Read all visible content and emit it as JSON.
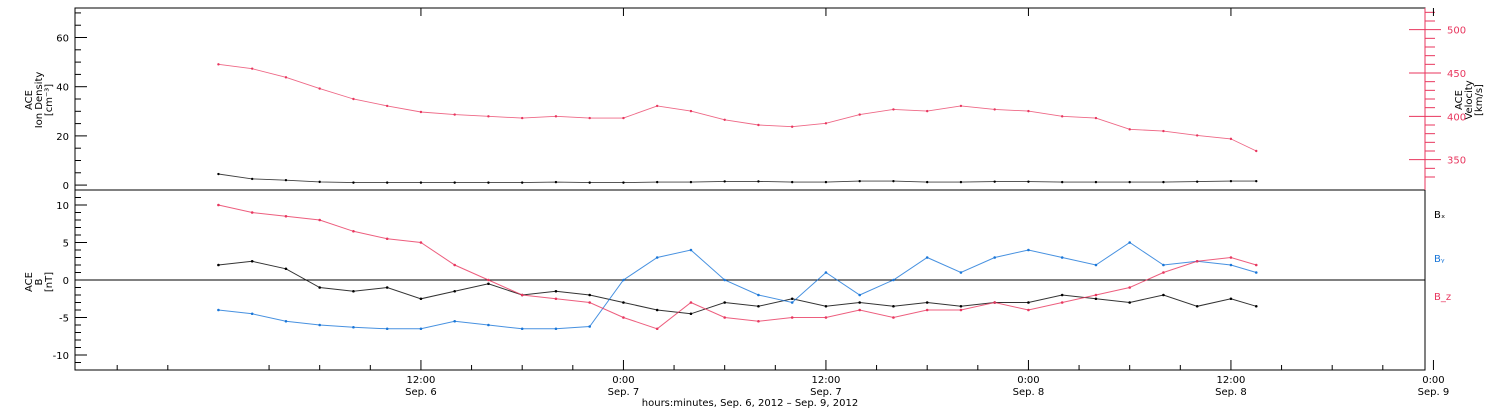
{
  "chart_data": [
    {
      "type": "scatter",
      "panel": "top",
      "ylabel_left": [
        "ACE",
        "Ion Density",
        "[cm⁻³]"
      ],
      "ylabel_right": [
        "ACE",
        "Velocity",
        "[km/s]"
      ],
      "ylim_left": [
        -2,
        72
      ],
      "ylim_right": [
        315,
        525
      ],
      "yticks_left": [
        "0",
        "20",
        "40",
        "60"
      ],
      "yticks_right": [
        "350",
        "400",
        "450",
        "500"
      ],
      "colors": {
        "density": "#000000",
        "velocity": "#e8365e"
      },
      "series": [
        {
          "axis": "left",
          "x": [
            0,
            2,
            4,
            6,
            8,
            10,
            12,
            14,
            16,
            18,
            20,
            22,
            24,
            26,
            28,
            30,
            32,
            34,
            36,
            38,
            40,
            42,
            44,
            46,
            48,
            50,
            52,
            54,
            56,
            58,
            60,
            61.5
          ],
          "values": [
            4.5,
            2.5,
            2.0,
            1.3,
            1.0,
            1.0,
            1.0,
            1.0,
            1.0,
            1.0,
            1.2,
            1.0,
            1.0,
            1.2,
            1.2,
            1.5,
            1.5,
            1.2,
            1.2,
            1.6,
            1.6,
            1.2,
            1.2,
            1.4,
            1.4,
            1.2,
            1.2,
            1.2,
            1.2,
            1.4,
            1.6,
            1.6
          ]
        },
        {
          "axis": "right",
          "x": [
            0,
            2,
            4,
            6,
            8,
            10,
            12,
            14,
            16,
            18,
            20,
            22,
            24,
            26,
            28,
            30,
            32,
            34,
            36,
            38,
            40,
            42,
            44,
            46,
            48,
            50,
            52,
            54,
            56,
            58,
            60,
            61.5
          ],
          "values": [
            460,
            455,
            445,
            432,
            420,
            412,
            405,
            402,
            400,
            398,
            400,
            398,
            398,
            412,
            406,
            396,
            390,
            388,
            392,
            402,
            408,
            406,
            412,
            408,
            406,
            400,
            398,
            385,
            383,
            378,
            374,
            360
          ]
        }
      ]
    },
    {
      "type": "scatter",
      "panel": "bottom",
      "ylabel_left": [
        "ACE",
        "B",
        "[nT]"
      ],
      "ylim": [
        -12,
        12
      ],
      "yticks": [
        "-10",
        "-5",
        "0",
        "5",
        "10"
      ],
      "zero_line": true,
      "series": [
        {
          "name": "Bₓ",
          "color": "#000000",
          "x": [
            0,
            2,
            4,
            6,
            8,
            10,
            12,
            14,
            16,
            18,
            20,
            22,
            24,
            26,
            28,
            30,
            32,
            34,
            36,
            38,
            40,
            42,
            44,
            46,
            48,
            50,
            52,
            54,
            56,
            58,
            60,
            61.5
          ],
          "values": [
            2,
            2.5,
            1.5,
            -1,
            -1.5,
            -1,
            -2.5,
            -1.5,
            -0.5,
            -2,
            -1.5,
            -2,
            -3,
            -4,
            -4.5,
            -3,
            -3.5,
            -2.5,
            -3.5,
            -3,
            -3.5,
            -3,
            -3.5,
            -3,
            -3,
            -2,
            -2.5,
            -3,
            -2,
            -3.5,
            -2.5,
            -3.5
          ]
        },
        {
          "name": "Bᵧ",
          "color": "#1976d8",
          "x": [
            0,
            2,
            4,
            6,
            8,
            10,
            12,
            14,
            16,
            18,
            20,
            22,
            24,
            26,
            28,
            30,
            32,
            34,
            36,
            38,
            40,
            42,
            44,
            46,
            48,
            50,
            52,
            54,
            56,
            58,
            60,
            61.5
          ],
          "values": [
            -4,
            -4.5,
            -5.5,
            -6,
            -6.3,
            -6.5,
            -6.5,
            -5.5,
            -6,
            -6.5,
            -6.5,
            -6.2,
            0,
            3,
            4,
            0,
            -2,
            -3,
            1,
            -2,
            0,
            3,
            1,
            3,
            4,
            3,
            2,
            5,
            2,
            2.5,
            2,
            1
          ]
        },
        {
          "name": "B_z",
          "color": "#e8365e",
          "x": [
            0,
            2,
            4,
            6,
            8,
            10,
            12,
            14,
            16,
            18,
            20,
            22,
            24,
            26,
            28,
            30,
            32,
            34,
            36,
            38,
            40,
            42,
            44,
            46,
            48,
            50,
            52,
            54,
            56,
            58,
            60,
            61.5
          ],
          "values": [
            10,
            9,
            8.5,
            8,
            6.5,
            5.5,
            5,
            2,
            0,
            -2,
            -2.5,
            -3,
            -5,
            -6.5,
            -3,
            -5,
            -5.5,
            -5,
            -5,
            -4,
            -5,
            -4,
            -4,
            -3,
            -4,
            -3,
            -2,
            -1,
            1,
            2.5,
            3,
            2
          ]
        }
      ]
    }
  ],
  "x_axis": {
    "range_hours": [
      -8.5,
      71.5
    ],
    "ticks": [
      {
        "hour": 12,
        "time": "12:00",
        "day": "Sep. 6"
      },
      {
        "hour": 24,
        "time": "0:00",
        "day": "Sep. 7"
      },
      {
        "hour": 36,
        "time": "12:00",
        "day": "Sep. 7"
      },
      {
        "hour": 48,
        "time": "0:00",
        "day": "Sep. 8"
      },
      {
        "hour": 60,
        "time": "12:00",
        "day": "Sep. 8"
      },
      {
        "hour": 72,
        "time": "0:00",
        "day": "Sep. 9"
      }
    ],
    "title": "hours:minutes, Sep.  6, 2012 – Sep.  9, 2012"
  }
}
